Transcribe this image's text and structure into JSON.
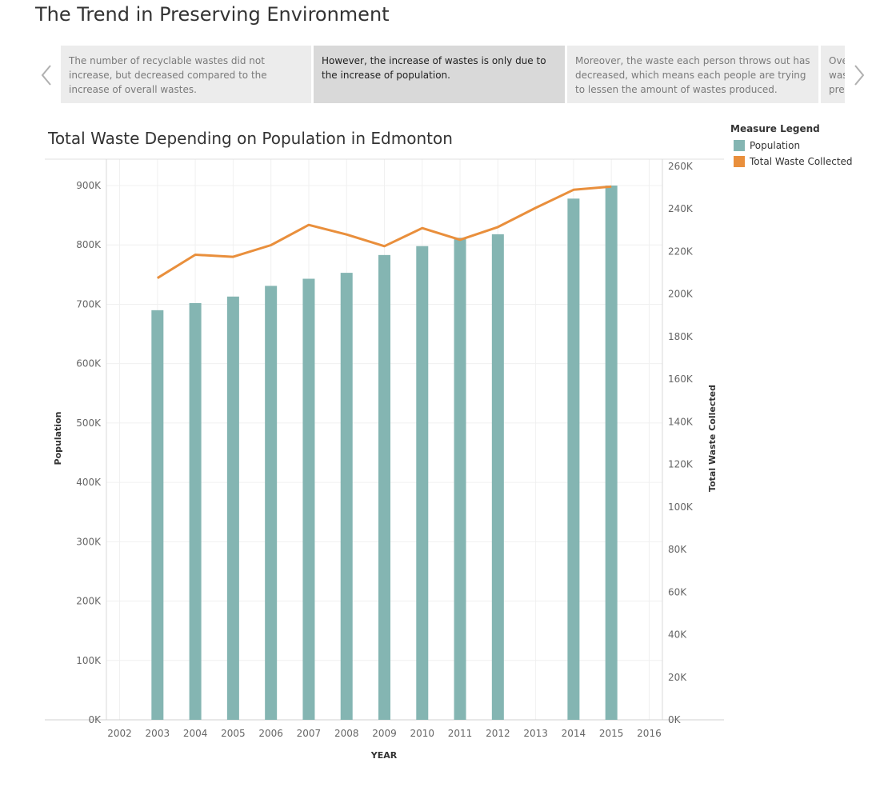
{
  "story": {
    "title": "The Trend in Preserving Environment",
    "points": [
      "The number of recyclable wastes did not increase, but decreased compared to the increase of overall wastes.",
      "However, the increase of wastes is only due to the increase of population.",
      "Moreover, the waste each person throws out has decreased, which means each people are trying to lessen the amount of wastes produced.",
      "Ove was pre"
    ],
    "active_index": 1
  },
  "icons": {
    "prev": "chevron-left-icon",
    "next": "chevron-right-icon"
  },
  "colors": {
    "population": "#84b5b2",
    "waste": "#e98f3c",
    "active_point": "#d9d9d9",
    "inactive_point": "#ececec"
  },
  "legend": {
    "title": "Measure Legend",
    "items": [
      {
        "label": "Population",
        "color": "#84b5b2"
      },
      {
        "label": "Total Waste Collected",
        "color": "#e98f3c"
      }
    ]
  },
  "chart_data": {
    "type": "bar",
    "title": "Total Waste Depending on Population in Edmonton",
    "xlabel": "YEAR",
    "ylabel": "Population",
    "y2label": "Total Waste Collected",
    "x_ticks": [
      "2002",
      "2003",
      "2004",
      "2005",
      "2006",
      "2007",
      "2008",
      "2009",
      "2010",
      "2011",
      "2012",
      "2013",
      "2014",
      "2015",
      "2016"
    ],
    "x_range": [
      2001.65,
      2016.35
    ],
    "ylim": [
      0,
      900000
    ],
    "y_ticks": [
      "0K",
      "100K",
      "200K",
      "300K",
      "400K",
      "500K",
      "600K",
      "700K",
      "800K",
      "900K"
    ],
    "y2lim": [
      0,
      260000
    ],
    "y2_ticks": [
      "0K",
      "20K",
      "40K",
      "60K",
      "80K",
      "100K",
      "120K",
      "140K",
      "160K",
      "180K",
      "200K",
      "220K",
      "240K",
      "260K"
    ],
    "grid": true,
    "legend_position": "top-right",
    "series": [
      {
        "name": "Population",
        "type": "bar",
        "axis": "left",
        "points": [
          {
            "x": 2003,
            "y": 690000
          },
          {
            "x": 2004,
            "y": 702000
          },
          {
            "x": 2005,
            "y": 713000
          },
          {
            "x": 2006,
            "y": 731000
          },
          {
            "x": 2007,
            "y": 743000
          },
          {
            "x": 2008,
            "y": 753000
          },
          {
            "x": 2009,
            "y": 783000
          },
          {
            "x": 2010,
            "y": 798000
          },
          {
            "x": 2011,
            "y": 812000
          },
          {
            "x": 2012,
            "y": 818000
          },
          {
            "x": 2014,
            "y": 878000
          },
          {
            "x": 2015,
            "y": 900000
          }
        ]
      },
      {
        "name": "Total Waste Collected",
        "type": "line",
        "axis": "right",
        "points": [
          {
            "x": 2003,
            "y": 207500
          },
          {
            "x": 2004,
            "y": 218500
          },
          {
            "x": 2005,
            "y": 217500
          },
          {
            "x": 2006,
            "y": 223000
          },
          {
            "x": 2007,
            "y": 232500
          },
          {
            "x": 2008,
            "y": 228000
          },
          {
            "x": 2009,
            "y": 222500
          },
          {
            "x": 2010,
            "y": 231000
          },
          {
            "x": 2011,
            "y": 225500
          },
          {
            "x": 2012,
            "y": 231500
          },
          {
            "x": 2013,
            "y": 240500
          },
          {
            "x": 2014,
            "y": 249000
          },
          {
            "x": 2015,
            "y": 250500
          }
        ]
      }
    ]
  }
}
